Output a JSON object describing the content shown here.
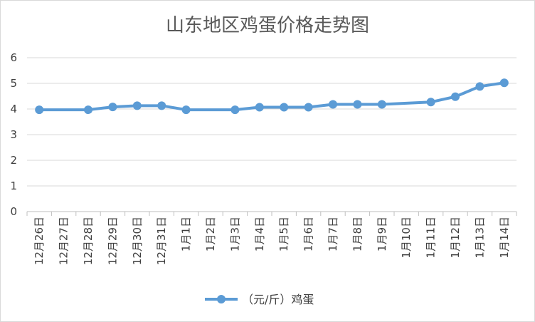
{
  "chart_data": {
    "type": "line",
    "title": "山东地区鸡蛋价格走势图",
    "xlabel": "",
    "ylabel": "",
    "categories": [
      "12月26日",
      "12月27日",
      "12月28日",
      "12月29日",
      "12月30日",
      "12月31日",
      "1月1日",
      "1月2日",
      "1月3日",
      "1月4日",
      "1月5日",
      "1月6日",
      "1月7日",
      "1月8日",
      "1月9日",
      "1月10日",
      "1月11日",
      "1月12日",
      "1月13日",
      "1月14日"
    ],
    "series": [
      {
        "name": "（元/斤）鸡蛋",
        "values": [
          3.97,
          null,
          3.97,
          4.08,
          4.13,
          4.13,
          3.97,
          null,
          3.97,
          4.07,
          4.07,
          4.07,
          4.18,
          4.18,
          4.18,
          null,
          4.27,
          4.48,
          4.88,
          5.02
        ],
        "color": "#5b9bd5"
      }
    ],
    "ylim": [
      0,
      6
    ],
    "yticks": [
      "0",
      "1",
      "2",
      "3",
      "4",
      "5",
      "6"
    ],
    "grid": true,
    "legend_position": "bottom"
  }
}
